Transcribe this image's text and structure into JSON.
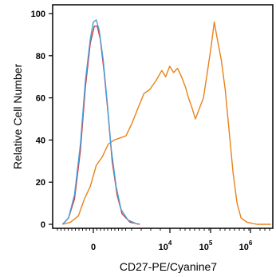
{
  "chart_data": {
    "type": "line",
    "xlabel": "CD27-PE/Cyanine7",
    "ylabel": "Relative Cell Number",
    "ylim": [
      0,
      100
    ],
    "y_ticks": [
      "0",
      "20",
      "40",
      "60",
      "80",
      "100"
    ],
    "x_scale": "biexponential",
    "x_tick_labels": [
      {
        "base": "0",
        "exp": ""
      },
      {
        "base": "10",
        "exp": "4"
      },
      {
        "base": "10",
        "exp": "5"
      },
      {
        "base": "10",
        "exp": "6"
      }
    ],
    "grid": false,
    "series": [
      {
        "color": "#e8821a",
        "points": [
          [
            -2.0,
            0
          ],
          [
            -1.6,
            1
          ],
          [
            -1.2,
            4
          ],
          [
            -0.9,
            12
          ],
          [
            -0.6,
            18
          ],
          [
            -0.3,
            28
          ],
          [
            0.0,
            32
          ],
          [
            0.3,
            38
          ],
          [
            0.6,
            40
          ],
          [
            0.9,
            41
          ],
          [
            1.2,
            42
          ],
          [
            1.5,
            48
          ],
          [
            1.8,
            55
          ],
          [
            2.1,
            62
          ],
          [
            2.4,
            64
          ],
          [
            2.7,
            68
          ],
          [
            3.0,
            73
          ],
          [
            3.2,
            70
          ],
          [
            3.4,
            75
          ],
          [
            3.6,
            72
          ],
          [
            3.8,
            74
          ],
          [
            4.0,
            70
          ],
          [
            4.2,
            65
          ],
          [
            4.35,
            60
          ],
          [
            4.5,
            56
          ],
          [
            4.7,
            50
          ],
          [
            4.9,
            55
          ],
          [
            5.1,
            60
          ],
          [
            5.3,
            72
          ],
          [
            5.5,
            85
          ],
          [
            5.65,
            96
          ],
          [
            5.8,
            88
          ],
          [
            6.0,
            78
          ],
          [
            6.2,
            64
          ],
          [
            6.4,
            44
          ],
          [
            6.6,
            24
          ],
          [
            6.8,
            10
          ],
          [
            7.0,
            3
          ],
          [
            7.3,
            1
          ],
          [
            7.8,
            0
          ],
          [
            8.5,
            0
          ]
        ]
      },
      {
        "color": "#cc3b3b",
        "points": [
          [
            -2.0,
            0
          ],
          [
            -1.7,
            3
          ],
          [
            -1.4,
            12
          ],
          [
            -1.1,
            35
          ],
          [
            -0.85,
            65
          ],
          [
            -0.6,
            86
          ],
          [
            -0.4,
            94
          ],
          [
            -0.25,
            94
          ],
          [
            -0.1,
            88
          ],
          [
            0.1,
            72
          ],
          [
            0.3,
            52
          ],
          [
            0.5,
            30
          ],
          [
            0.75,
            14
          ],
          [
            1.0,
            5
          ],
          [
            1.4,
            1
          ],
          [
            1.9,
            0
          ]
        ]
      },
      {
        "color": "#4aa0d8",
        "points": [
          [
            -2.0,
            0
          ],
          [
            -1.7,
            3
          ],
          [
            -1.4,
            14
          ],
          [
            -1.1,
            38
          ],
          [
            -0.85,
            68
          ],
          [
            -0.6,
            88
          ],
          [
            -0.45,
            96
          ],
          [
            -0.3,
            97
          ],
          [
            -0.15,
            92
          ],
          [
            0.05,
            78
          ],
          [
            0.25,
            58
          ],
          [
            0.45,
            36
          ],
          [
            0.7,
            18
          ],
          [
            0.95,
            7
          ],
          [
            1.3,
            2
          ],
          [
            1.8,
            0
          ]
        ]
      }
    ]
  }
}
